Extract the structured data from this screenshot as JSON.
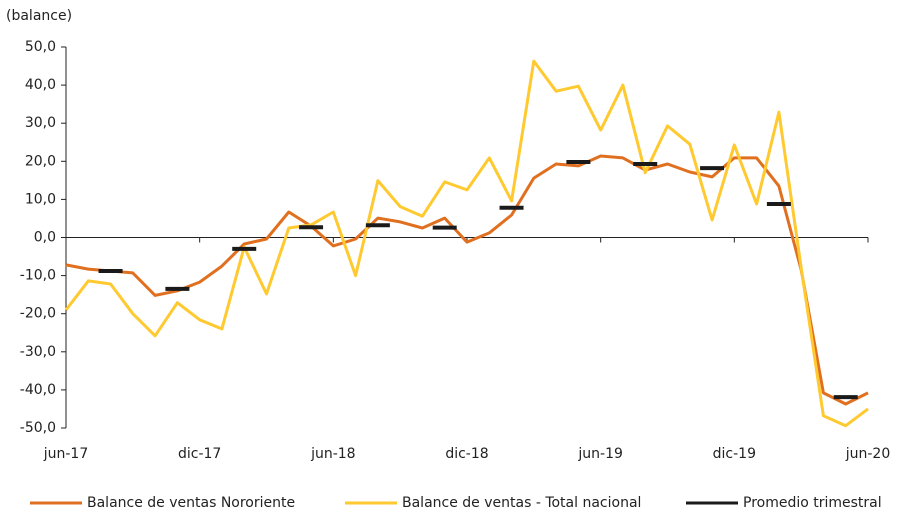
{
  "chart_data": {
    "type": "line",
    "y_label": "(balance)",
    "categories": [
      "jun-17",
      null,
      null,
      null,
      null,
      null,
      "dic-17",
      null,
      null,
      null,
      null,
      null,
      "jun-18",
      null,
      null,
      null,
      null,
      null,
      "dic-18",
      null,
      null,
      null,
      null,
      null,
      "jun-19",
      null,
      null,
      null,
      null,
      null,
      "dic-19",
      null,
      null,
      null,
      null,
      null,
      "jun-20"
    ],
    "series": [
      {
        "name": "Balance de ventas Nororiente",
        "color": "#e07020",
        "style": "line",
        "values": [
          -7.2,
          -8.3,
          -8.8,
          -9.3,
          -15.2,
          -14,
          -11.7,
          -7.5,
          -1.7,
          -0.4,
          6.7,
          3,
          -2.2,
          -0.4,
          5.1,
          4.1,
          2.5,
          5.1,
          -1.2,
          1.2,
          5.9,
          15.6,
          19.3,
          18.8,
          21.4,
          20.9,
          17.7,
          19.3,
          17.2,
          15.9,
          20.9,
          20.9,
          13.5,
          -8.5,
          -40.8,
          -43.7,
          -40.8
        ]
      },
      {
        "name": "Balance de ventas - Total nacional",
        "color": "#ffc930",
        "style": "line",
        "values": [
          -19,
          -11.4,
          -12.2,
          -20,
          -25.8,
          -17.1,
          -21.6,
          -24,
          -2.5,
          -14.8,
          2.5,
          3.3,
          6.7,
          -10,
          14.9,
          8.1,
          5.6,
          14.6,
          12.5,
          20.9,
          9.6,
          46.3,
          38.4,
          39.7,
          28.2,
          40,
          17,
          29.3,
          24.5,
          4.6,
          24.3,
          8.8,
          32.9,
          -8,
          -46.8,
          -49.4,
          -45
        ]
      },
      {
        "name": "Promedio trimestral",
        "color": "#1a1a1a",
        "style": "dash",
        "values": [
          null,
          null,
          -8.8,
          null,
          null,
          -13.5,
          null,
          null,
          -3,
          null,
          null,
          2.7,
          null,
          null,
          3.2,
          null,
          null,
          2.6,
          null,
          null,
          7.8,
          null,
          null,
          19.8,
          null,
          null,
          19.3,
          null,
          null,
          18.2,
          null,
          null,
          8.8,
          null,
          null,
          -41.9,
          null
        ]
      }
    ],
    "ylim": [
      -50,
      50
    ],
    "yticks": [
      {
        "value": -50,
        "label": "-50,0"
      },
      {
        "value": -40,
        "label": "-40,0"
      },
      {
        "value": -30,
        "label": "-30,0"
      },
      {
        "value": -20,
        "label": "-20,0"
      },
      {
        "value": -10,
        "label": "-10,0"
      },
      {
        "value": 0,
        "label": "0,0"
      },
      {
        "value": 10,
        "label": "10,0"
      },
      {
        "value": 20,
        "label": "20,0"
      },
      {
        "value": 30,
        "label": "30,0"
      },
      {
        "value": 40,
        "label": "40,0"
      },
      {
        "value": 50,
        "label": "50,0"
      }
    ],
    "legend": "bottom"
  }
}
